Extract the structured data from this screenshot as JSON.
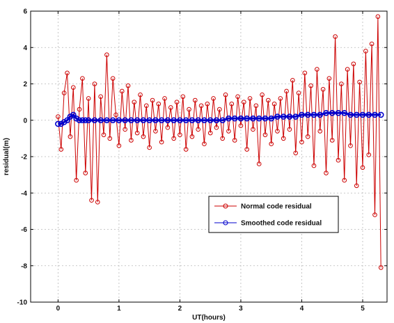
{
  "chart_data": {
    "type": "line",
    "xlabel": "UT(hours)",
    "ylabel": "residual(m)",
    "xlim": [
      -0.45,
      5.4
    ],
    "ylim": [
      -10,
      6
    ],
    "xticks": [
      0,
      1,
      2,
      3,
      4,
      5
    ],
    "yticks": [
      -10,
      -8,
      -6,
      -4,
      -2,
      0,
      2,
      4,
      6
    ],
    "grid": true,
    "legend_position": "lower-right",
    "series": [
      {
        "name": "Normal code residual",
        "color": "#cc0000",
        "marker": "circle",
        "x": [
          0.0,
          0.05,
          0.1,
          0.15,
          0.2,
          0.25,
          0.3,
          0.35,
          0.4,
          0.45,
          0.5,
          0.55,
          0.6,
          0.65,
          0.7,
          0.75,
          0.8,
          0.85,
          0.9,
          0.95,
          1.0,
          1.05,
          1.1,
          1.15,
          1.2,
          1.25,
          1.3,
          1.35,
          1.4,
          1.45,
          1.5,
          1.55,
          1.6,
          1.65,
          1.7,
          1.75,
          1.8,
          1.85,
          1.9,
          1.95,
          2.0,
          2.05,
          2.1,
          2.15,
          2.2,
          2.25,
          2.3,
          2.35,
          2.4,
          2.45,
          2.5,
          2.55,
          2.6,
          2.65,
          2.7,
          2.75,
          2.8,
          2.85,
          2.9,
          2.95,
          3.0,
          3.05,
          3.1,
          3.15,
          3.2,
          3.25,
          3.3,
          3.35,
          3.4,
          3.45,
          3.5,
          3.55,
          3.6,
          3.65,
          3.7,
          3.75,
          3.8,
          3.85,
          3.9,
          3.95,
          4.0,
          4.05,
          4.1,
          4.15,
          4.2,
          4.25,
          4.3,
          4.35,
          4.4,
          4.45,
          4.5,
          4.55,
          4.6,
          4.65,
          4.7,
          4.75,
          4.8,
          4.85,
          4.9,
          4.95,
          5.0,
          5.05,
          5.1,
          5.15,
          5.2,
          5.25,
          5.3
        ],
        "values": [
          0.2,
          -1.6,
          1.5,
          2.6,
          -0.9,
          1.8,
          -3.3,
          0.6,
          2.3,
          -2.9,
          1.2,
          -4.4,
          2.0,
          -4.5,
          1.3,
          -0.8,
          3.6,
          -1.0,
          2.3,
          0.3,
          -1.4,
          1.6,
          -0.5,
          1.9,
          -1.1,
          1.0,
          -0.7,
          1.4,
          -0.9,
          0.8,
          -1.5,
          1.1,
          -0.6,
          0.9,
          -1.2,
          1.2,
          -0.4,
          0.7,
          -1.0,
          1.0,
          -0.8,
          1.3,
          -1.6,
          0.6,
          -0.9,
          1.1,
          -0.5,
          0.8,
          -1.3,
          0.9,
          -0.7,
          1.2,
          -0.4,
          0.6,
          -1.0,
          1.4,
          -0.6,
          0.9,
          -1.1,
          1.3,
          -0.3,
          1.0,
          -1.6,
          1.2,
          -0.5,
          0.8,
          -2.4,
          1.4,
          -0.8,
          1.1,
          -1.3,
          0.9,
          -0.6,
          1.2,
          -1.0,
          1.6,
          -0.5,
          2.2,
          -1.8,
          1.5,
          -1.2,
          2.6,
          -0.9,
          1.9,
          -2.5,
          2.8,
          -0.6,
          1.7,
          -2.9,
          2.3,
          -1.1,
          4.6,
          -2.2,
          2.0,
          -3.3,
          2.8,
          -1.4,
          3.1,
          -3.6,
          2.1,
          -2.6,
          3.8,
          -1.9,
          4.2,
          -5.2,
          5.7,
          -8.1
        ]
      },
      {
        "name": "Smoothed code residual",
        "color": "#0000cc",
        "marker": "circle",
        "x": [
          0.0,
          0.05,
          0.1,
          0.15,
          0.2,
          0.25,
          0.3,
          0.35,
          0.4,
          0.45,
          0.5,
          0.6,
          0.7,
          0.8,
          0.9,
          1.0,
          1.1,
          1.2,
          1.3,
          1.4,
          1.5,
          1.6,
          1.7,
          1.8,
          1.9,
          2.0,
          2.1,
          2.2,
          2.3,
          2.4,
          2.5,
          2.6,
          2.7,
          2.8,
          2.9,
          3.0,
          3.1,
          3.2,
          3.3,
          3.4,
          3.5,
          3.6,
          3.7,
          3.8,
          3.9,
          4.0,
          4.1,
          4.2,
          4.3,
          4.4,
          4.5,
          4.6,
          4.7,
          4.8,
          4.9,
          5.0,
          5.1,
          5.2,
          5.3
        ],
        "values": [
          -0.2,
          -0.2,
          -0.1,
          0.0,
          0.2,
          0.3,
          0.1,
          0.0,
          0.0,
          0.0,
          0.0,
          0.0,
          0.0,
          0.0,
          0.0,
          0.0,
          0.0,
          0.0,
          0.0,
          0.0,
          0.0,
          0.0,
          0.0,
          0.0,
          0.0,
          0.0,
          0.0,
          0.0,
          0.0,
          0.0,
          0.0,
          0.0,
          0.0,
          0.1,
          0.1,
          0.1,
          0.1,
          0.1,
          0.1,
          0.1,
          0.1,
          0.2,
          0.2,
          0.2,
          0.2,
          0.3,
          0.3,
          0.3,
          0.3,
          0.4,
          0.4,
          0.4,
          0.4,
          0.3,
          0.3,
          0.3,
          0.3,
          0.3,
          0.3
        ]
      }
    ]
  }
}
